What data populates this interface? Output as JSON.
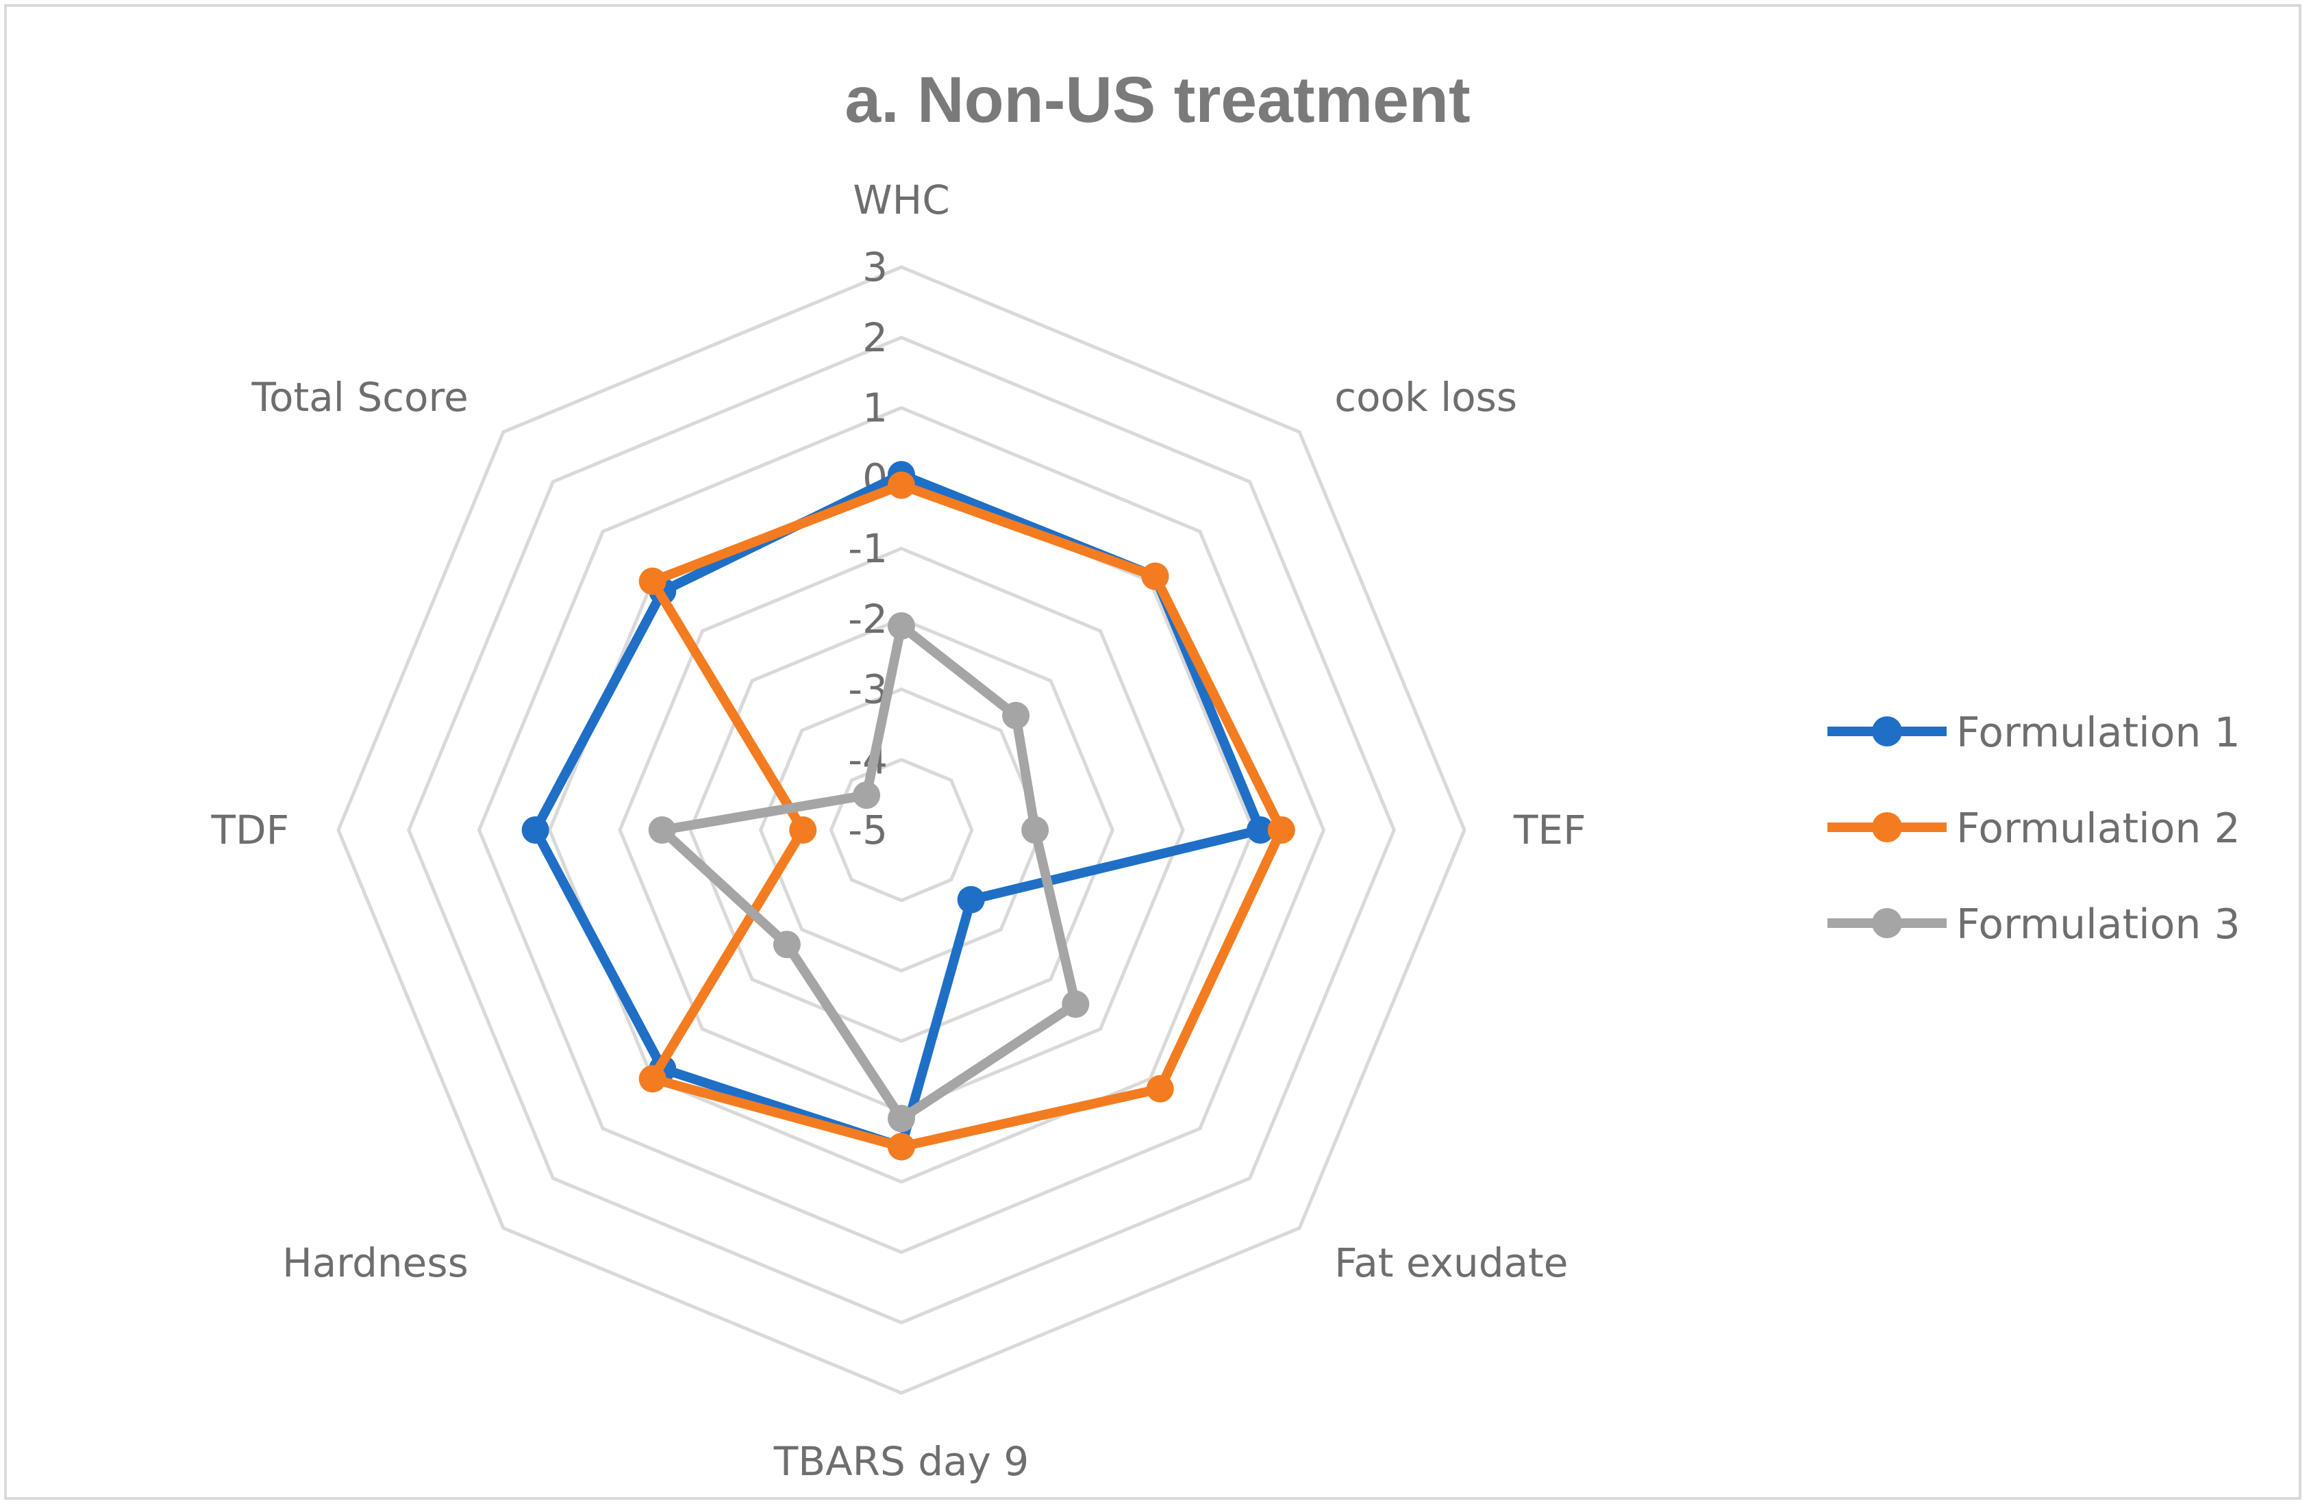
{
  "chart_data": {
    "type": "radar",
    "title": "a. Non-US treatment",
    "categories": [
      "WHC",
      "cook loss",
      "TEF",
      "Fat exudate",
      "TBARS day 9",
      "Hardness",
      "TDF",
      "Total Score"
    ],
    "rlim": [
      -5,
      3
    ],
    "ticks": [
      3,
      2,
      1,
      0,
      -1,
      -2,
      -3,
      -4,
      -5
    ],
    "grid": true,
    "legend_position": "right",
    "series": [
      {
        "name": "Formulation 1",
        "color": "#1f6fc6",
        "values": [
          0.05,
          0.1,
          0.1,
          -3.6,
          -0.5,
          -0.2,
          0.2,
          -0.2
        ]
      },
      {
        "name": "Formulation 2",
        "color": "#f47c20",
        "values": [
          -0.1,
          0.1,
          0.4,
          0.2,
          -0.5,
          0,
          -3.6,
          0
        ]
      },
      {
        "name": "Formulation 3",
        "color": "#a5a5a5",
        "values": [
          -2.1,
          -2.7,
          -3.1,
          -1.5,
          -0.9,
          -2.7,
          -1.6,
          -4.3
        ]
      }
    ]
  }
}
